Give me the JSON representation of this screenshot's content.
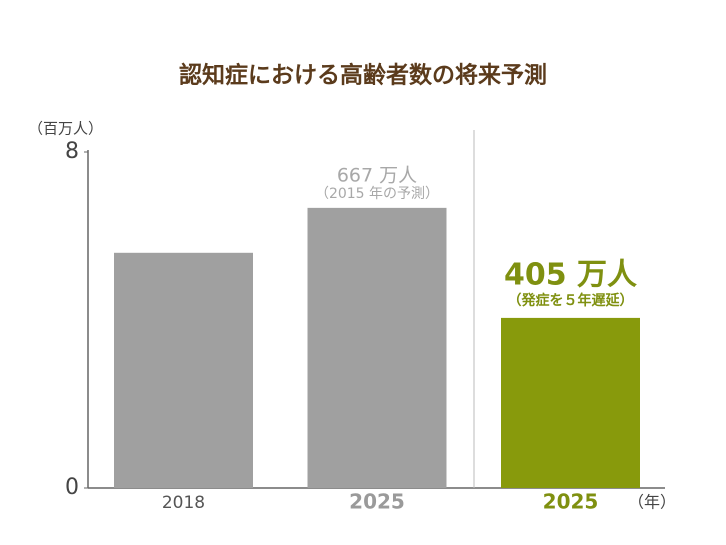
{
  "chart_data": {
    "type": "bar",
    "title": "認知症における高齢者数の将来予測",
    "y_label": "（百万人）",
    "x_label": "（年）",
    "categories": [
      "2018",
      "2025",
      "2025"
    ],
    "category_colors": [
      "#555555",
      "#9a9a9a",
      "#7f9010"
    ],
    "values": [
      5.6,
      6.67,
      4.05
    ],
    "colors": [
      "#a0a0a0",
      "#a0a0a0",
      "#889a0c"
    ],
    "value_labels": [
      null,
      "667 万人",
      "405 万人"
    ],
    "value_notes": [
      null,
      "（2015 年の予測）",
      "（発症を５年遅延）"
    ],
    "ylim": [
      0,
      8
    ],
    "yticks": [
      0,
      8
    ],
    "grid": false
  }
}
